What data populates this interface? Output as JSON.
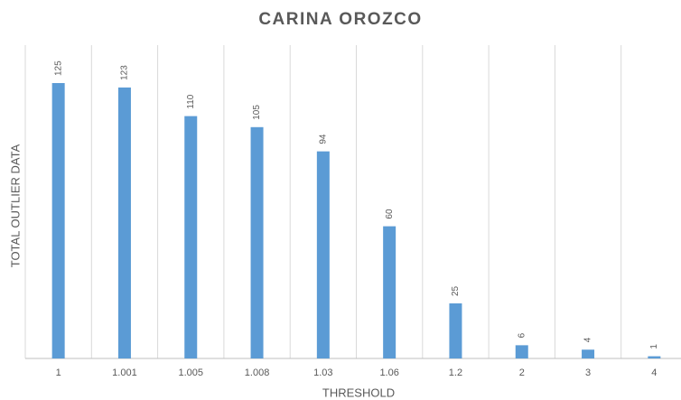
{
  "chart_data": {
    "type": "bar",
    "title": "CARINA OROZCO",
    "x_label": "THRESHOLD",
    "y_label": "TOTAL OUTLIER DATA",
    "categories": [
      "1",
      "1.001",
      "1.005",
      "1.008",
      "1.03",
      "1.06",
      "1.2",
      "2",
      "3",
      "4"
    ],
    "values": [
      125,
      123,
      110,
      105,
      94,
      60,
      25,
      6,
      4,
      1
    ],
    "color": "#5b9bd5",
    "grid": true
  }
}
